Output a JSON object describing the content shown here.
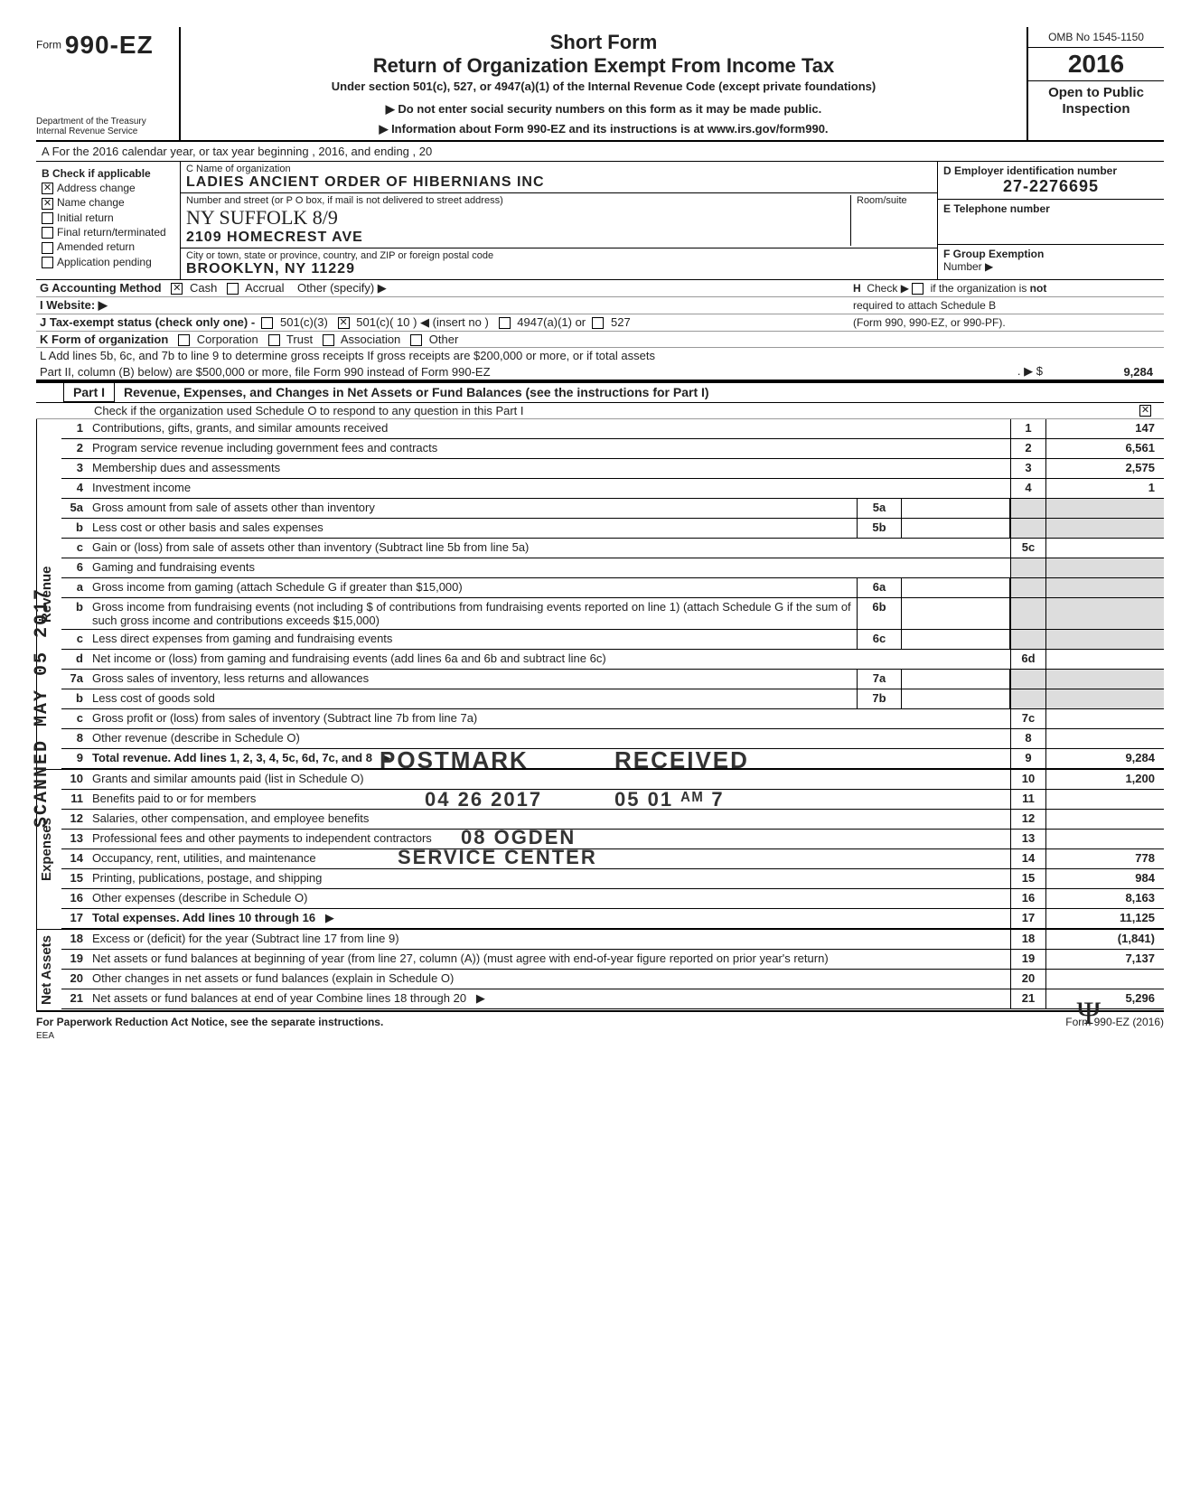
{
  "header": {
    "form_prefix": "Form",
    "form_number": "990-EZ",
    "dept1": "Department of the Treasury",
    "dept2": "Internal Revenue Service",
    "short_form": "Short Form",
    "main_title": "Return of Organization Exempt From Income Tax",
    "sub1": "Under section 501(c), 527, or 4947(a)(1) of the Internal Revenue Code (except private foundations)",
    "sub2": "▶  Do not enter social security numbers on this form as it may be made public.",
    "sub3": "▶  Information about Form 990-EZ and its instructions is at www.irs.gov/form990.",
    "omb": "OMB No 1545-1150",
    "year": "2016",
    "open": "Open to Public Inspection"
  },
  "lineA": "A  For the 2016 calendar year, or tax year beginning                                             , 2016, and ending                                          , 20",
  "sectionB": {
    "title": "B  Check if applicable",
    "items": [
      {
        "label": "Address change",
        "checked": true
      },
      {
        "label": "Name change",
        "checked": true
      },
      {
        "label": "Initial return",
        "checked": false
      },
      {
        "label": "Final return/terminated",
        "checked": false
      },
      {
        "label": "Amended return",
        "checked": false
      },
      {
        "label": "Application pending",
        "checked": false
      }
    ]
  },
  "sectionC": {
    "name_label": "C   Name of organization",
    "name": "LADIES ANCIENT ORDER OF HIBERNIANS INC",
    "addr_label": "Number and street (or P O  box, if mail is not delivered to street address)",
    "room_label": "Room/suite",
    "handwritten": "NY   SUFFOLK   8/9",
    "street": "2109 HOMECREST AVE",
    "city_label": "City or town, state or province, country, and ZIP or foreign postal code",
    "city": "BROOKLYN, NY  11229"
  },
  "sectionD": {
    "label": "D  Employer identification number",
    "ein": "27-2276695",
    "tel_label": "E  Telephone number",
    "group_label": "F  Group Exemption",
    "group_num": "Number  ▶"
  },
  "lineG": {
    "label": "G  Accounting Method",
    "cash": "Cash",
    "accrual": "Accrual",
    "other": "Other (specify) ▶"
  },
  "lineH": "H   Check ▶        if the organization is not required to attach Schedule B (Form 990, 990-EZ, or 990-PF).",
  "lineI": "I    Website:   ▶",
  "lineJ": {
    "label": "J   Tax-exempt status (check only one) -",
    "c3": "501(c)(3)",
    "c_other": "501(c)( 10 )  ◀ (insert no )",
    "a1": "4947(a)(1) or",
    "s527": "527"
  },
  "lineK": {
    "label": "K  Form of organization",
    "corp": "Corporation",
    "trust": "Trust",
    "assoc": "Association",
    "other": "Other"
  },
  "lineL": {
    "text1": "L  Add lines 5b, 6c, and 7b to line 9 to determine gross receipts  If gross receipts are $200,000 or more, or if total assets",
    "text2": "Part II, column (B) below) are $500,000 or more, file Form 990 instead of Form 990-EZ",
    "arrow": ". ▶  $",
    "value": "9,284"
  },
  "part1": {
    "label": "Part I",
    "title": "Revenue, Expenses, and Changes in Net Assets or Fund Balances (see the instructions for Part I)",
    "check_line": "Check if the organization used Schedule O to respond to any question in this Part I",
    "check_checked": true
  },
  "sections": {
    "revenue": "Revenue",
    "expenses": "Expenses",
    "netassets": "Net Assets"
  },
  "rows": [
    {
      "ln": "1",
      "desc": "Contributions, gifts, grants, and similar amounts received",
      "rln": "1",
      "rval": "147"
    },
    {
      "ln": "2",
      "desc": "Program service revenue including government fees and contracts",
      "rln": "2",
      "rval": "6,561"
    },
    {
      "ln": "3",
      "desc": "Membership dues and assessments",
      "rln": "3",
      "rval": "2,575"
    },
    {
      "ln": "4",
      "desc": "Investment income",
      "rln": "4",
      "rval": "1"
    },
    {
      "ln": "5a",
      "desc": "Gross amount from sale of assets other than inventory",
      "mid_ln": "5a",
      "mid_val": ""
    },
    {
      "ln": "b",
      "desc": "Less  cost or other basis and sales expenses",
      "mid_ln": "5b",
      "mid_val": ""
    },
    {
      "ln": "c",
      "desc": "Gain or (loss) from sale of assets other than inventory (Subtract line 5b from line 5a)",
      "rln": "5c",
      "rval": ""
    },
    {
      "ln": "6",
      "desc": "Gaming and fundraising events"
    },
    {
      "ln": "a",
      "desc": "Gross income from gaming (attach Schedule G if greater than $15,000)",
      "mid_ln": "6a",
      "mid_val": ""
    },
    {
      "ln": "b",
      "desc": "Gross income from fundraising events (not including      $                                  of contributions from fundraising events reported on line 1) (attach Schedule G if the sum of such gross income and contributions exceeds $15,000)",
      "mid_ln": "6b",
      "mid_val": ""
    },
    {
      "ln": "c",
      "desc": "Less  direct expenses from gaming and fundraising events",
      "mid_ln": "6c",
      "mid_val": ""
    },
    {
      "ln": "d",
      "desc": "Net income or (loss) from gaming and fundraising events (add lines 6a and 6b and subtract line 6c)",
      "rln": "6d",
      "rval": ""
    },
    {
      "ln": "7a",
      "desc": "Gross sales of inventory, less returns and allowances",
      "mid_ln": "7a",
      "mid_val": ""
    },
    {
      "ln": "b",
      "desc": "Less  cost of goods sold",
      "mid_ln": "7b",
      "mid_val": ""
    },
    {
      "ln": "c",
      "desc": "Gross profit or (loss) from sales of inventory (Subtract line 7b from line 7a)",
      "rln": "7c",
      "rval": ""
    },
    {
      "ln": "8",
      "desc": "Other revenue (describe in Schedule O)",
      "rln": "8",
      "rval": ""
    },
    {
      "ln": "9",
      "desc": "Total revenue.  Add lines 1, 2, 3, 4, 5c, 6d, 7c, and 8",
      "rln": "9",
      "rval": "9,284",
      "arrow": true,
      "bold": true
    },
    {
      "ln": "10",
      "desc": "Grants and similar amounts paid (list in Schedule O)",
      "rln": "10",
      "rval": "1,200"
    },
    {
      "ln": "11",
      "desc": "Benefits paid to or for members",
      "rln": "11",
      "rval": ""
    },
    {
      "ln": "12",
      "desc": "Salaries, other compensation, and employee benefits",
      "rln": "12",
      "rval": ""
    },
    {
      "ln": "13",
      "desc": "Professional fees and other payments to independent contractors",
      "rln": "13",
      "rval": ""
    },
    {
      "ln": "14",
      "desc": "Occupancy, rent, utilities, and maintenance",
      "rln": "14",
      "rval": "778"
    },
    {
      "ln": "15",
      "desc": "Printing, publications, postage, and shipping",
      "rln": "15",
      "rval": "984"
    },
    {
      "ln": "16",
      "desc": "Other expenses (describe in Schedule O)",
      "rln": "16",
      "rval": "8,163"
    },
    {
      "ln": "17",
      "desc": "Total expenses.  Add lines 10 through 16",
      "rln": "17",
      "rval": "11,125",
      "arrow": true,
      "bold": true
    },
    {
      "ln": "18",
      "desc": "Excess or (deficit) for the year (Subtract line 17 from line 9)",
      "rln": "18",
      "rval": "(1,841)"
    },
    {
      "ln": "19",
      "desc": "Net assets or fund balances at beginning of year (from line 27, column (A)) (must agree with end-of-year figure reported on prior year's return)",
      "rln": "19",
      "rval": "7,137"
    },
    {
      "ln": "20",
      "desc": "Other changes in net assets or fund balances (explain in Schedule O)",
      "rln": "20",
      "rval": ""
    },
    {
      "ln": "21",
      "desc": "Net assets or fund balances at end of year  Combine lines 18 through 20",
      "rln": "21",
      "rval": "5,296",
      "arrow": true
    }
  ],
  "stamps": {
    "postmark": "POSTMARK",
    "received": "RECEIVED",
    "date1": "04 26 2017",
    "date2": "05 01 ᴬᴹ 7",
    "ogden": "08 OGDEN",
    "service": "SERVICE CENTER",
    "scanned": "SCANNED MAY 05 2017"
  },
  "footer": {
    "left": "For Paperwork Reduction Act Notice, see the separate instructions.",
    "eea": "EEA",
    "right": "Form 990-EZ (2016)"
  }
}
